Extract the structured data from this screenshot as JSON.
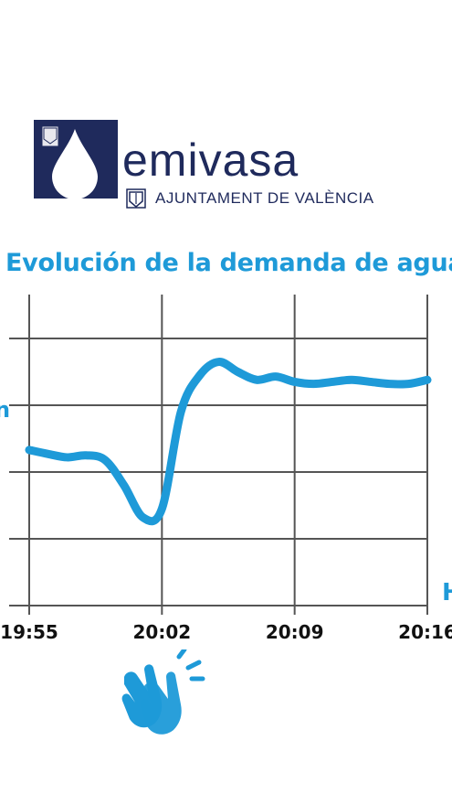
{
  "brand": {
    "name": "emivasa",
    "subtitle": "AJUNTAMENT DE VALÈNCIA",
    "seal_text": "VALENCIA",
    "logo_color": "#1f2a5c"
  },
  "chart_data": {
    "type": "line",
    "title": "Evolución de la demanda de agua",
    "xlabel": "H",
    "ylabel": "",
    "x_ticks": [
      "19:55",
      "20:02",
      "20:09",
      "20:16"
    ],
    "x_range": [
      0,
      21
    ],
    "y_range": [
      0,
      4
    ],
    "y_gridlines": 4,
    "grid": true,
    "series": [
      {
        "color": "#1e9ad8",
        "points": [
          [
            0,
            2.33
          ],
          [
            1,
            2.27
          ],
          [
            2,
            2.22
          ],
          [
            3,
            2.25
          ],
          [
            4,
            2.18
          ],
          [
            5,
            1.8
          ],
          [
            6,
            1.32
          ],
          [
            7,
            1.45
          ],
          [
            8,
            2.9
          ],
          [
            9,
            3.45
          ],
          [
            10,
            3.65
          ],
          [
            11,
            3.5
          ],
          [
            12,
            3.38
          ],
          [
            13,
            3.43
          ],
          [
            14,
            3.35
          ],
          [
            15,
            3.32
          ],
          [
            16,
            3.35
          ],
          [
            17,
            3.38
          ],
          [
            18,
            3.35
          ],
          [
            19,
            3.32
          ],
          [
            20,
            3.32
          ],
          [
            21,
            3.38
          ]
        ]
      }
    ],
    "accent_color": "#1e9ad8",
    "grid_color": "#555555",
    "icon": "clapping-hands-icon"
  }
}
